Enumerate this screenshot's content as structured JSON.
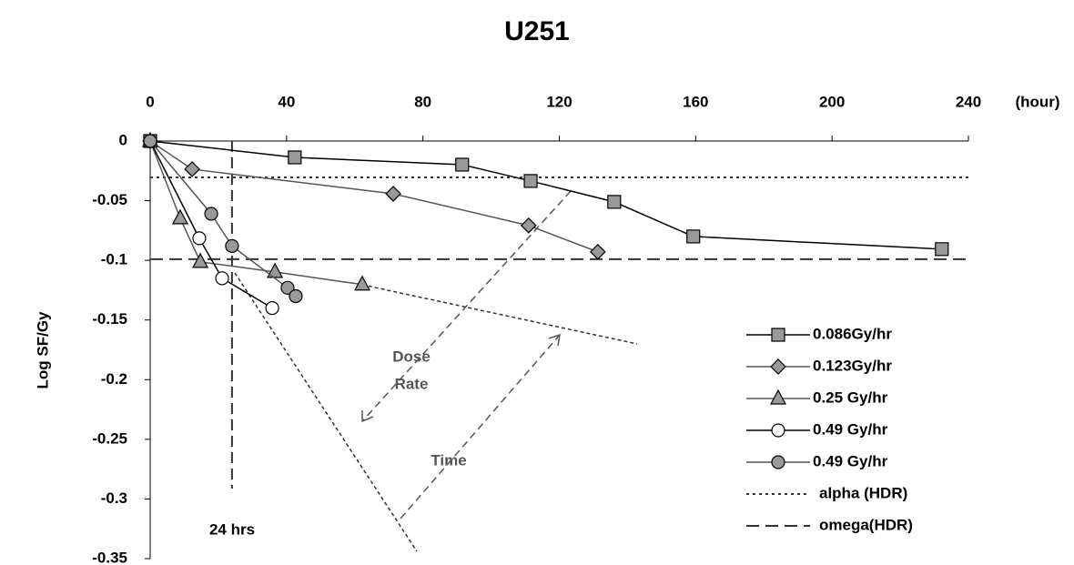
{
  "chart_data": {
    "type": "line",
    "title": "U251",
    "x_label": "(hour)",
    "y_label": "Log SF/Gy",
    "xlim": [
      0,
      240
    ],
    "xticks": [
      0,
      40,
      80,
      120,
      160,
      200,
      240
    ],
    "ylim": [
      -0.35,
      0
    ],
    "yticks": [
      0,
      -0.05,
      -0.1,
      -0.15,
      -0.2,
      -0.25,
      -0.3,
      -0.35
    ],
    "series": [
      {
        "name": "0.086Gy/hr",
        "color": "#000000",
        "marker": "square",
        "marker_fill": "#999999",
        "x": [
          0,
          42.4,
          91.5,
          111.6,
          136.1,
          159.3,
          232.2
        ],
        "values": [
          0,
          -0.0137,
          -0.0198,
          -0.0335,
          -0.051,
          -0.08,
          -0.0906
        ]
      },
      {
        "name": "0.123Gy/hr",
        "color": "#555555",
        "marker": "diamond",
        "marker_fill": "#999999",
        "x": [
          0,
          12.3,
          71.3,
          111,
          131.3
        ],
        "values": [
          0,
          -0.0236,
          -0.0442,
          -0.0708,
          -0.0929
        ]
      },
      {
        "name": "0.25 Gy/hr",
        "color": "#555555",
        "marker": "triangle",
        "marker_fill": "#999999",
        "x": [
          0,
          8.8,
          14.7,
          36.6,
          62.2
        ],
        "values": [
          0,
          -0.0647,
          -0.1013,
          -0.1097,
          -0.1203
        ]
      },
      {
        "name": "0.49 Gy/hr",
        "color": "#000000",
        "marker": "open-circle",
        "marker_fill": "#ffffff",
        "x": [
          0,
          14.4,
          21.1,
          35.8
        ],
        "values": [
          0,
          -0.0815,
          -0.115,
          -0.14
        ]
      },
      {
        "name": "0.49 Gy/hr",
        "color": "#555555",
        "marker": "circle",
        "marker_fill": "#999999",
        "x": [
          0,
          17.9,
          24.0,
          40.3,
          42.7
        ],
        "values": [
          0,
          -0.061,
          -0.088,
          -0.123,
          -0.13
        ]
      }
    ],
    "reference_lines": [
      {
        "name": "alpha  (HDR)",
        "value": -0.0305,
        "style": "dotted"
      },
      {
        "name": "omega(HDR)",
        "value": -0.099,
        "style": "dashed"
      }
    ],
    "vline": {
      "value": 24,
      "label": "24 hrs"
    },
    "annotations": [
      "Dose",
      "Rate",
      "Time"
    ]
  }
}
